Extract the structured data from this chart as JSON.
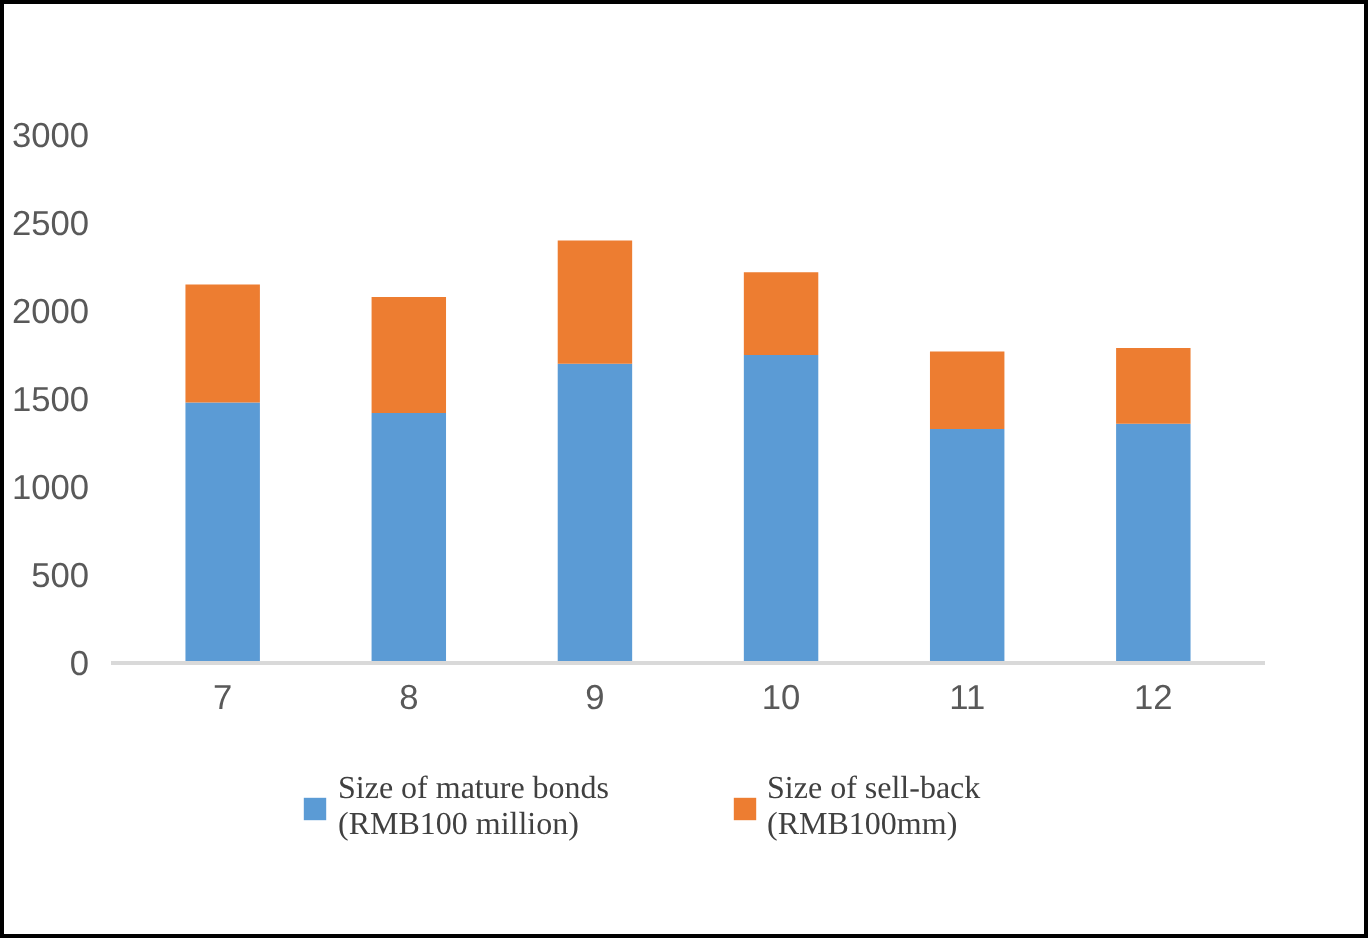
{
  "chart_data": {
    "type": "bar",
    "stacked": true,
    "categories": [
      "7",
      "8",
      "9",
      "10",
      "11",
      "12"
    ],
    "series": [
      {
        "name": "Size of mature bonds (RMB100 million)",
        "color": "#5b9bd5",
        "values": [
          1480,
          1420,
          1700,
          1750,
          1330,
          1360
        ]
      },
      {
        "name": "Size of sell-back (RMB100mm)",
        "color": "#ed7d31",
        "values": [
          670,
          660,
          700,
          470,
          440,
          430
        ]
      }
    ],
    "ylim": [
      0,
      3000
    ],
    "yticks": [
      0,
      500,
      1000,
      1500,
      2000,
      2500,
      3000
    ],
    "grid": false,
    "legend": "bottom"
  }
}
